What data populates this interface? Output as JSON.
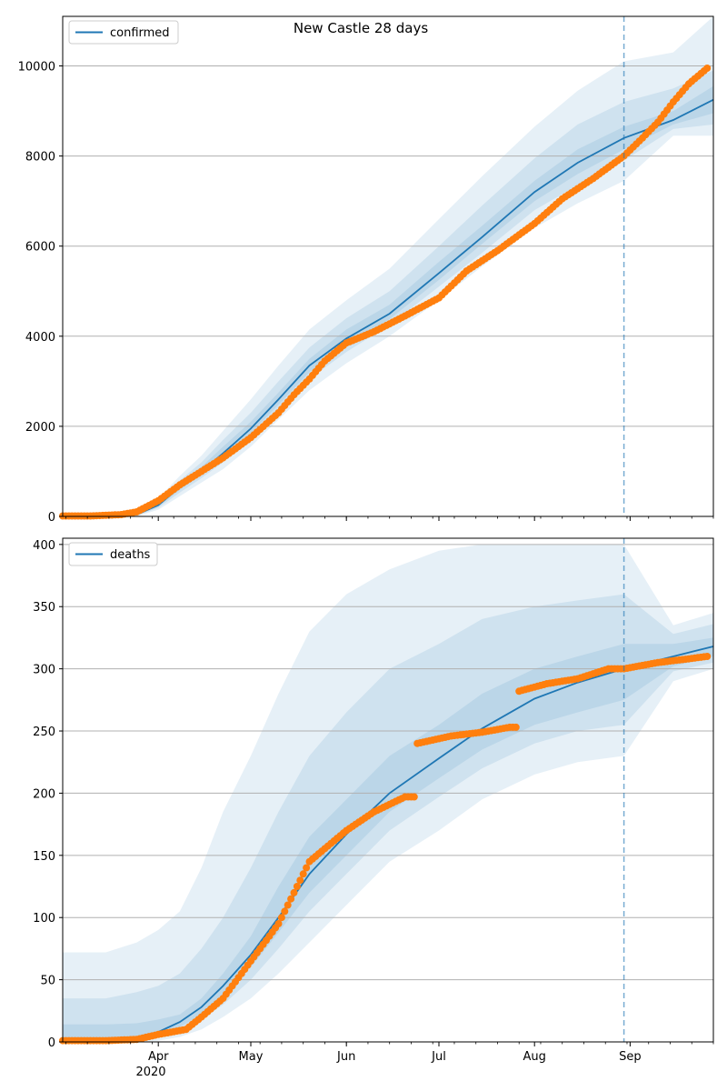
{
  "figure": {
    "title": "New Castle 28 days",
    "x_tick_labels": [
      "Apr",
      "May",
      "Jun",
      "Jul",
      "Aug",
      "Sep"
    ],
    "x_year_label": "2020"
  },
  "colors": {
    "model_line": "#1f77b4",
    "observed": "#ff7f0e",
    "band": "#1f77b4",
    "grid": "#b0b0b0",
    "forecast_marker": "#1f77b4"
  },
  "chart_data": [
    {
      "type": "line",
      "title": "New Castle 28 days",
      "legend": "confirmed",
      "legend_position": "top-left",
      "grid": "horizontal",
      "x_range": [
        "2020-03-01",
        "2020-09-28"
      ],
      "ylim": [
        0,
        11100
      ],
      "y_ticks": [
        0,
        2000,
        4000,
        6000,
        8000,
        10000
      ],
      "forecast_start": "2020-08-30",
      "model": {
        "dates": [
          "2020-03-01",
          "2020-03-15",
          "2020-03-25",
          "2020-04-01",
          "2020-04-08",
          "2020-04-15",
          "2020-04-22",
          "2020-05-01",
          "2020-05-10",
          "2020-05-20",
          "2020-06-01",
          "2020-06-15",
          "2020-07-01",
          "2020-07-15",
          "2020-08-01",
          "2020-08-15",
          "2020-08-30",
          "2020-09-15",
          "2020-09-28"
        ],
        "values": [
          0,
          0,
          40,
          250,
          650,
          1000,
          1400,
          1950,
          2600,
          3350,
          3950,
          4500,
          5400,
          6200,
          7200,
          7850,
          8400,
          8800,
          9250
        ]
      },
      "bands": [
        {
          "level": "outer",
          "lower": [
            0,
            0,
            0,
            150,
            450,
            750,
            1050,
            1550,
            2150,
            2800,
            3400,
            4000,
            4800,
            5550,
            6400,
            6950,
            7450,
            8450,
            8450
          ],
          "upper": [
            0,
            0,
            80,
            400,
            900,
            1350,
            1900,
            2600,
            3350,
            4150,
            4800,
            5500,
            6600,
            7550,
            8650,
            9450,
            10100,
            10300,
            11100
          ]
        },
        {
          "level": "middle",
          "lower": [
            0,
            0,
            10,
            190,
            530,
            850,
            1200,
            1730,
            2350,
            3050,
            3650,
            4250,
            5100,
            5850,
            6800,
            7350,
            7900,
            8600,
            8700
          ],
          "upper": [
            0,
            0,
            65,
            330,
            800,
            1200,
            1700,
            2300,
            3000,
            3750,
            4400,
            5000,
            6000,
            6900,
            7950,
            8700,
            9200,
            9500,
            9900
          ]
        },
        {
          "level": "inner",
          "lower": [
            0,
            0,
            25,
            220,
            590,
            920,
            1300,
            1850,
            2480,
            3200,
            3800,
            4380,
            5250,
            6050,
            7000,
            7600,
            8150,
            8700,
            8950
          ],
          "upper": [
            0,
            0,
            55,
            290,
            720,
            1100,
            1550,
            2100,
            2750,
            3500,
            4150,
            4700,
            5650,
            6450,
            7450,
            8150,
            8650,
            9000,
            9550
          ]
        }
      ],
      "observed": {
        "dates": [
          "2020-03-01",
          "2020-03-10",
          "2020-03-20",
          "2020-03-25",
          "2020-04-01",
          "2020-04-08",
          "2020-04-15",
          "2020-04-22",
          "2020-05-01",
          "2020-05-10",
          "2020-05-15",
          "2020-05-20",
          "2020-05-25",
          "2020-06-01",
          "2020-06-10",
          "2020-06-20",
          "2020-07-01",
          "2020-07-10",
          "2020-07-20",
          "2020-08-01",
          "2020-08-10",
          "2020-08-20",
          "2020-08-30",
          "2020-09-05",
          "2020-09-10",
          "2020-09-15",
          "2020-09-20",
          "2020-09-26"
        ],
        "values": [
          10,
          10,
          40,
          100,
          350,
          700,
          1000,
          1300,
          1750,
          2300,
          2700,
          3050,
          3450,
          3850,
          4100,
          4450,
          4850,
          5450,
          5900,
          6500,
          7050,
          7500,
          8000,
          8400,
          8750,
          9200,
          9600,
          9950
        ]
      }
    },
    {
      "type": "line",
      "legend": "deaths",
      "legend_position": "top-left",
      "grid": "horizontal",
      "x_range": [
        "2020-03-01",
        "2020-09-28"
      ],
      "ylim": [
        0,
        405
      ],
      "y_ticks": [
        0,
        50,
        100,
        150,
        200,
        250,
        300,
        350,
        400
      ],
      "forecast_start": "2020-08-30",
      "model": {
        "dates": [
          "2020-03-01",
          "2020-03-15",
          "2020-03-25",
          "2020-04-01",
          "2020-04-08",
          "2020-04-15",
          "2020-04-22",
          "2020-05-01",
          "2020-05-10",
          "2020-05-20",
          "2020-06-01",
          "2020-06-15",
          "2020-07-01",
          "2020-07-15",
          "2020-08-01",
          "2020-08-15",
          "2020-08-30",
          "2020-09-15",
          "2020-09-28"
        ],
        "values": [
          0,
          0,
          3,
          8,
          16,
          28,
          45,
          70,
          100,
          135,
          167,
          200,
          228,
          252,
          276,
          289,
          300,
          310,
          318
        ]
      },
      "bands": [
        {
          "level": "outer",
          "lower": [
            0,
            0,
            0,
            1,
            4,
            10,
            20,
            35,
            55,
            80,
            110,
            145,
            170,
            195,
            215,
            225,
            230,
            290,
            300
          ],
          "upper": [
            72,
            72,
            80,
            90,
            105,
            140,
            185,
            230,
            280,
            330,
            360,
            380,
            395,
            400,
            400,
            400,
            400,
            335,
            345
          ]
        },
        {
          "level": "middle",
          "lower": [
            0,
            0,
            1,
            4,
            9,
            18,
            30,
            50,
            75,
            105,
            135,
            170,
            197,
            220,
            240,
            250,
            255,
            298,
            305
          ],
          "upper": [
            35,
            35,
            40,
            45,
            55,
            75,
            100,
            140,
            185,
            230,
            265,
            300,
            320,
            340,
            350,
            355,
            360,
            328,
            336
          ]
        },
        {
          "level": "inner",
          "lower": [
            0,
            0,
            2,
            6,
            12,
            22,
            38,
            60,
            88,
            120,
            150,
            185,
            212,
            235,
            255,
            265,
            275,
            302,
            310
          ],
          "upper": [
            14,
            14,
            15,
            18,
            22,
            35,
            55,
            85,
            125,
            165,
            195,
            230,
            255,
            280,
            300,
            310,
            320,
            320,
            325
          ]
        }
      ],
      "observed": {
        "dates": [
          "2020-03-01",
          "2020-03-15",
          "2020-03-25",
          "2020-04-01",
          "2020-04-10",
          "2020-04-15",
          "2020-04-22",
          "2020-05-01",
          "2020-05-10",
          "2020-05-20",
          "2020-06-01",
          "2020-06-10",
          "2020-06-20",
          "2020-06-24",
          "2020-07-05",
          "2020-07-15",
          "2020-07-24",
          "2020-07-27",
          "2020-08-05",
          "2020-08-15",
          "2020-08-25",
          "2020-08-30",
          "2020-09-10",
          "2020-09-20",
          "2020-09-26"
        ],
        "values": [
          1,
          1,
          2,
          6,
          10,
          20,
          35,
          65,
          95,
          145,
          170,
          185,
          197,
          240,
          246,
          249,
          253,
          282,
          288,
          292,
          300,
          300,
          305,
          308,
          310
        ]
      }
    }
  ]
}
